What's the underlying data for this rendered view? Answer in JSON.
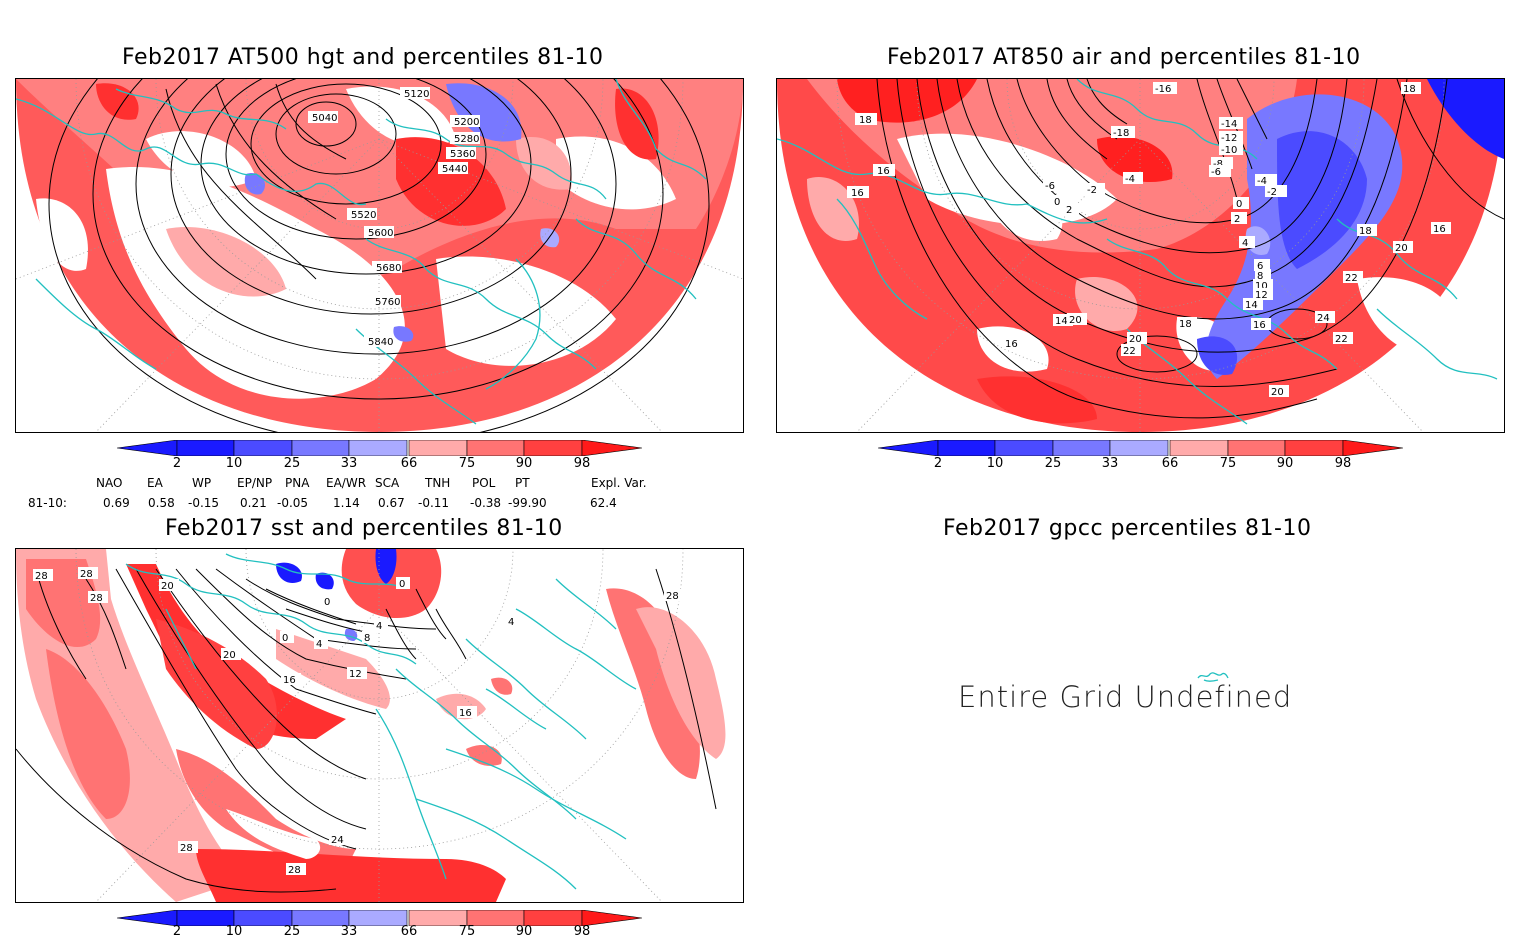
{
  "panels": {
    "hgt500": {
      "title": "Feb2017 AT500 hgt and percentiles 81-10",
      "contour_labels": [
        "5040",
        "5120",
        "5200",
        "5280",
        "5360",
        "5440",
        "5520",
        "5600",
        "5680",
        "5760",
        "5840"
      ]
    },
    "air850": {
      "title": "Feb2017 AT850 air and percentiles 81-10",
      "contour_labels": [
        "18",
        "16",
        "16",
        "-16",
        "-14",
        "-12",
        "-10",
        "-8",
        "-6",
        "-4",
        "-2",
        "0",
        "2",
        "4",
        "6",
        "8",
        "10",
        "12",
        "14",
        "16",
        "18",
        "20",
        "22",
        "24",
        "22",
        "20",
        "16",
        "18",
        "-18",
        "14",
        "18",
        "20",
        "22",
        "16",
        "20",
        "-4",
        "-2",
        "0",
        "2",
        "-6"
      ]
    },
    "sst": {
      "title": "Feb2017 sst and percentiles 81-10",
      "contour_labels": [
        "28",
        "28",
        "28",
        "20",
        "20",
        "16",
        "12",
        "8",
        "4",
        "0",
        "0",
        "0",
        "4",
        "24",
        "28",
        "28",
        "28",
        "16",
        "4"
      ]
    },
    "gpcc": {
      "title": "Feb2017 gpcc percentiles 81-10",
      "message": "Entire Grid Undefined"
    }
  },
  "colorbar": {
    "ticks": [
      "2",
      "10",
      "25",
      "33",
      "66",
      "75",
      "90",
      "98"
    ],
    "colors": {
      "deep_blue": "#1a1aff",
      "blue": "#4b4bff",
      "mid_blue": "#7878ff",
      "light_blue": "#aaaaff",
      "light_red": "#ffaaaa",
      "mid_red": "#ff7373",
      "red": "#ff4040",
      "deep_red": "#ff1a1a",
      "coast": "#22c0c0"
    }
  },
  "indices": {
    "headers": [
      "NAO",
      "EA",
      "WP",
      "EP/NP",
      "PNA",
      "EA/WR",
      "SCA",
      "TNH",
      "POL",
      "PT",
      "Expl. Var."
    ],
    "row_label": "81-10:",
    "values": [
      "0.69",
      "0.58",
      "-0.15",
      "0.21",
      "-0.05",
      "1.14",
      "0.67",
      "-0.11",
      "-0.38",
      "-99.90",
      "62.4"
    ]
  }
}
